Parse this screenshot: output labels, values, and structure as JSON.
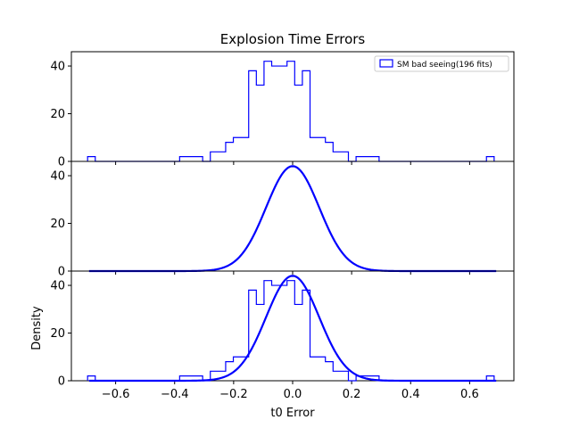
{
  "chart_data": {
    "type": "histogram-with-gaussian-fit",
    "title": "Explosion Time Errors",
    "xlabel": "t0 Error",
    "ylabel": "Density",
    "xlim": [
      -0.75,
      0.75
    ],
    "x_ticks": [
      -0.6,
      -0.4,
      -0.2,
      0.0,
      0.2,
      0.4,
      0.6
    ],
    "x_tick_labels": [
      "−0.6",
      "−0.4",
      "−0.2",
      "0.0",
      "0.2",
      "0.4",
      "0.6"
    ],
    "line_color": "#0000ff",
    "legend": {
      "placement": "top-right",
      "label": "SM bad seeing(196 fits)"
    },
    "histogram": {
      "bin_edges": [
        -0.695,
        -0.669,
        -0.643,
        -0.617,
        -0.591,
        -0.565,
        -0.539,
        -0.513,
        -0.487,
        -0.461,
        -0.435,
        -0.409,
        -0.383,
        -0.357,
        -0.331,
        -0.305,
        -0.279,
        -0.253,
        -0.227,
        -0.201,
        -0.175,
        -0.149,
        -0.123,
        -0.097,
        -0.071,
        -0.045,
        -0.019,
        0.007,
        0.033,
        0.059,
        0.085,
        0.111,
        0.137,
        0.163,
        0.189,
        0.215,
        0.241,
        0.267,
        0.293,
        0.319,
        0.345,
        0.371,
        0.397,
        0.423,
        0.449,
        0.475,
        0.501,
        0.527,
        0.553,
        0.579,
        0.605,
        0.631,
        0.657,
        0.683
      ],
      "values": [
        2,
        0,
        0,
        0,
        0,
        0,
        0,
        0,
        0,
        0,
        0,
        0,
        2,
        2,
        2,
        0,
        4,
        4,
        8,
        10,
        10,
        38,
        32,
        42,
        40,
        40,
        42,
        32,
        38,
        10,
        10,
        8,
        4,
        4,
        0,
        2,
        2,
        2,
        0,
        0,
        0,
        0,
        0,
        0,
        0,
        0,
        0,
        0,
        0,
        0,
        0,
        0,
        2
      ]
    },
    "gaussian_fit": {
      "mean": 0.0,
      "sigma": 0.09,
      "peak": 44,
      "x_range": [
        -0.69,
        0.69
      ]
    },
    "panels": [
      {
        "content": "histogram",
        "ylim": [
          0,
          46
        ],
        "y_ticks": [
          0,
          20,
          40
        ],
        "y_tick_labels": [
          "0",
          "20",
          "40"
        ],
        "has_legend": true,
        "has_title": true,
        "has_xticklabels": false,
        "has_ylabel": false
      },
      {
        "content": "gaussian",
        "ylim": [
          0,
          46
        ],
        "y_ticks": [
          0,
          20,
          40
        ],
        "y_tick_labels": [
          "0",
          "20",
          "40"
        ],
        "has_legend": false,
        "has_title": false,
        "has_xticklabels": false,
        "has_ylabel": false
      },
      {
        "content": "both",
        "ylim": [
          0,
          46
        ],
        "y_ticks": [
          0,
          20,
          40
        ],
        "y_tick_labels": [
          "0",
          "20",
          "40"
        ],
        "has_legend": false,
        "has_title": false,
        "has_xticklabels": true,
        "has_ylabel": true
      }
    ]
  }
}
